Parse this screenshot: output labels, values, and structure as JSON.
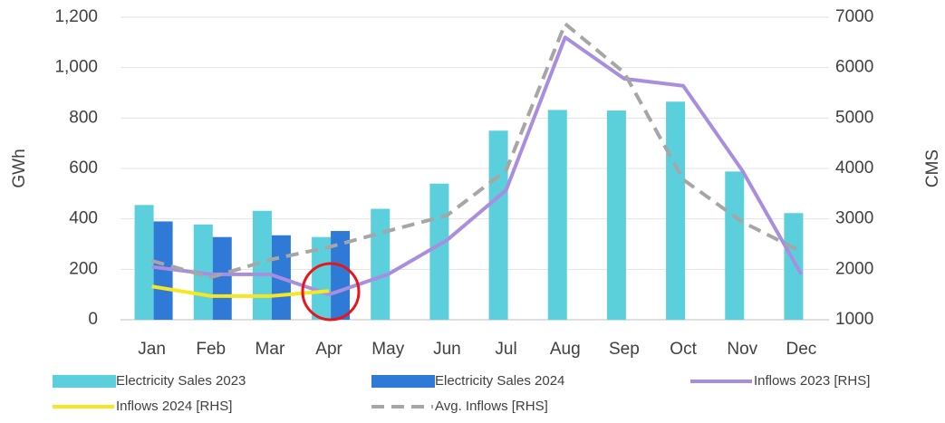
{
  "chart_data": {
    "type": "bar",
    "categories": [
      "Jan",
      "Feb",
      "Mar",
      "Apr",
      "May",
      "Jun",
      "Jul",
      "Aug",
      "Sep",
      "Oct",
      "Nov",
      "Dec"
    ],
    "ylabel": "GWh",
    "y2label": "CMS",
    "ylim": [
      0,
      1200
    ],
    "yticks": [
      0,
      200,
      400,
      600,
      800,
      {
        "value": 1000,
        "label": "1,000"
      },
      {
        "value": 1200,
        "label": "1,200"
      }
    ],
    "y2lim": [
      1000,
      7000
    ],
    "y2ticks": [
      1000,
      2000,
      3000,
      4000,
      5000,
      6000,
      7000
    ],
    "grid": true,
    "legend": "bottom",
    "series": [
      {
        "name": "Electricity Sales 2023",
        "type": "bar",
        "color": "#5bcfdc",
        "values": [
          455,
          378,
          432,
          328,
          440,
          540,
          750,
          832,
          830,
          865,
          588,
          423
        ]
      },
      {
        "name": "Electricity Sales 2024",
        "type": "bar",
        "color": "#2e7ad6",
        "values": [
          390,
          328,
          335,
          352,
          null,
          null,
          null,
          null,
          null,
          null,
          null,
          null
        ]
      },
      {
        "name": "Inflows 2023 [RHS]",
        "type": "line",
        "axis": "y2",
        "color": "#a98ee0",
        "values": [
          2050,
          1900,
          1900,
          1500,
          1900,
          2580,
          3570,
          6600,
          5780,
          5640,
          3960,
          1900
        ]
      },
      {
        "name": "Inflows 2024 [RHS]",
        "type": "line",
        "axis": "y2",
        "color": "#f5e626",
        "values": [
          1660,
          1470,
          1470,
          1570,
          null,
          null,
          null,
          null,
          null,
          null,
          null,
          null
        ]
      },
      {
        "name": "Avg. Inflows [RHS]",
        "type": "line",
        "axis": "y2",
        "color": "#a6a6a6",
        "style": "dashed",
        "values": [
          2170,
          1840,
          2190,
          2440,
          2760,
          3070,
          3960,
          6870,
          5900,
          3780,
          2940,
          2350
        ]
      }
    ]
  }
}
